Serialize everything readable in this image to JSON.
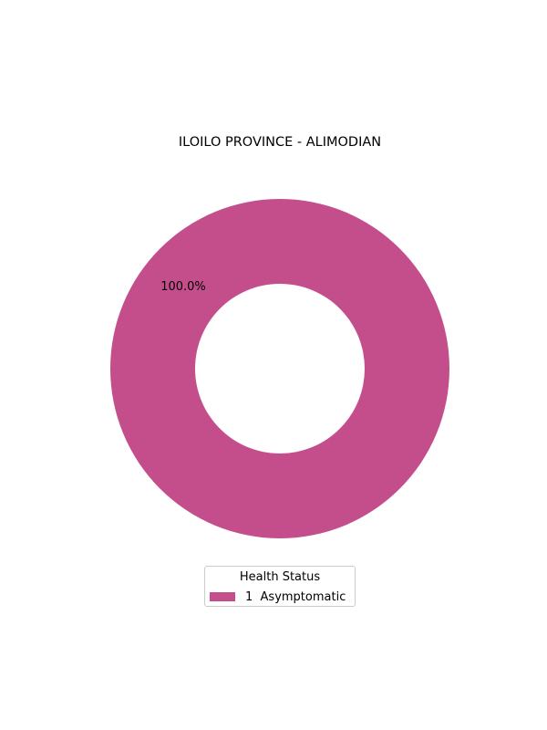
{
  "chart_data": {
    "type": "pie",
    "title": "ILOILO PROVINCE - ALIMODIAN",
    "legend_title": "Health Status",
    "legend_placement": "bottom-center",
    "donut": true,
    "slices": [
      {
        "label": "1  Asymptomatic",
        "value": 100.0,
        "pct_label": "100.0%",
        "color": "#c44e8c"
      }
    ]
  }
}
